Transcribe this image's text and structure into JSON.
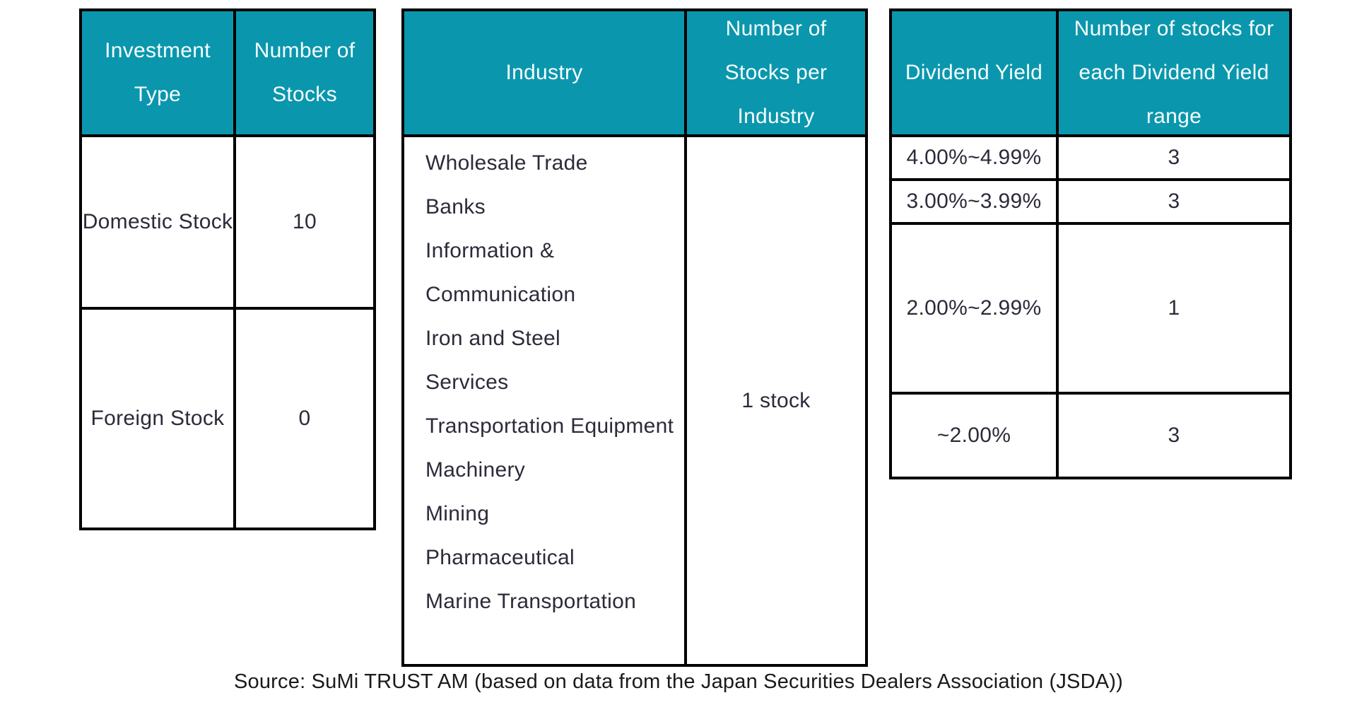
{
  "colors": {
    "header_background": "#0a97ad",
    "header_text": "#f7fcfd",
    "body_text": "#2b2b3a",
    "border": "#000000"
  },
  "tables": [
    {
      "name": "investment_type",
      "headers": [
        "Investment Type",
        "Number of Stocks"
      ],
      "rows": [
        {
          "label": "Domestic Stock",
          "value": "10"
        },
        {
          "label": "Foreign Stock",
          "value": "0"
        }
      ]
    },
    {
      "name": "industry",
      "headers": [
        "Industry",
        "Number of Stocks per Industry"
      ],
      "industries": [
        "Wholesale Trade",
        "Banks",
        "Information & Communication",
        "Iron and Steel",
        "Services",
        "Transportation Equipment",
        "Machinery",
        "Mining",
        "Pharmaceutical",
        "Marine Transportation"
      ],
      "stocks_per_industry": "1 stock"
    },
    {
      "name": "dividend_yield",
      "headers": [
        "Dividend Yield",
        "Number of stocks for each Dividend Yield range"
      ],
      "rows": [
        {
          "range": "4.00%~4.99%",
          "count": "3"
        },
        {
          "range": "3.00%~3.99%",
          "count": "3"
        },
        {
          "range": "2.00%~2.99%",
          "count": "1"
        },
        {
          "range": "~2.00%",
          "count": "3"
        }
      ]
    }
  ],
  "footer": {
    "source": "Source: SuMi TRUST AM (based on data from the Japan Securities Dealers Association (JSDA))"
  }
}
